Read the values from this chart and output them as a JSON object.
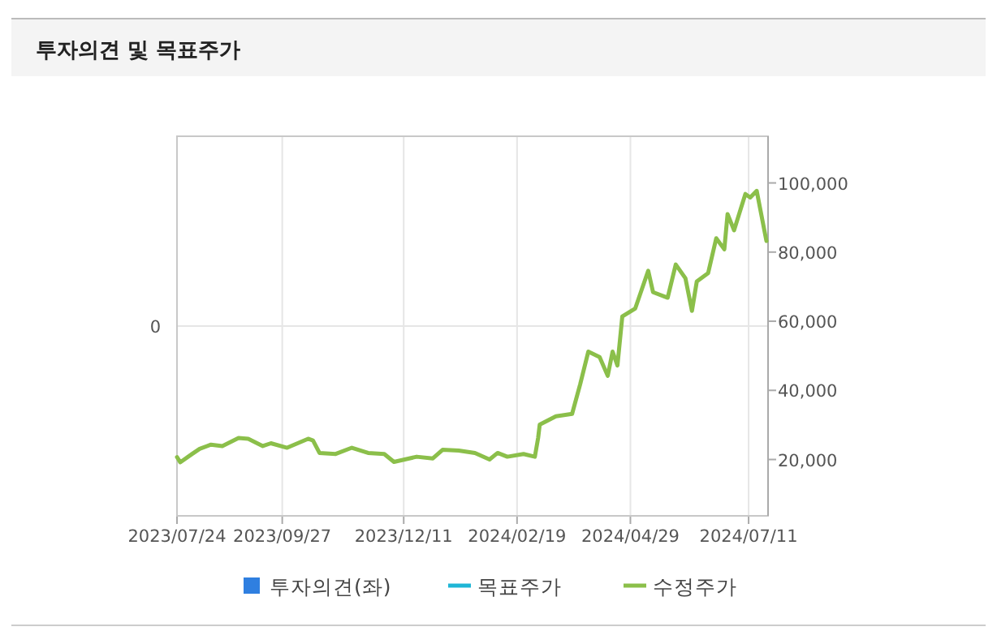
{
  "chart_data": {
    "type": "line",
    "title": "투자의견 및 목표주가",
    "xlim": [
      "2023-07-24",
      "2024-07-23"
    ],
    "xticks": [
      {
        "value": "2023-07-24",
        "label": "2023/07/24"
      },
      {
        "value": "2023-09-27",
        "label": "2023/09/27"
      },
      {
        "value": "2023-12-11",
        "label": "2023/12/11"
      },
      {
        "value": "2024-02-19",
        "label": "2024/02/19"
      },
      {
        "value": "2024-04-29",
        "label": "2024/04/29"
      },
      {
        "value": "2024-07-11",
        "label": "2024/07/11"
      }
    ],
    "annotations": [
      "0"
    ],
    "y2lim": [
      3700,
      113500
    ],
    "y2ticks": [
      {
        "value": 20000,
        "label": "20,000"
      },
      {
        "value": 40000,
        "label": "40,000"
      },
      {
        "value": 60000,
        "label": "60,000"
      },
      {
        "value": 80000,
        "label": "80,000"
      },
      {
        "value": 100000,
        "label": "100,000"
      }
    ],
    "grid": true,
    "legend": "bottom",
    "series": [
      {
        "name": "투자의견(좌)",
        "type": "bar",
        "axis": "y",
        "color": "#2f7fe0"
      },
      {
        "name": "목표주가",
        "type": "line",
        "axis": "y2",
        "color": "#1fb6d6"
      },
      {
        "name": "수정주가",
        "axis": "y2",
        "color": "#8bbf4a",
        "x": [
          "2023-07-24",
          "2023-07-26",
          "2023-08-02",
          "2023-08-07",
          "2023-08-14",
          "2023-08-21",
          "2023-08-31",
          "2023-09-06",
          "2023-09-15",
          "2023-09-20",
          "2023-09-30",
          "2023-10-13",
          "2023-10-16",
          "2023-10-20",
          "2023-10-30",
          "2023-11-09",
          "2023-11-19",
          "2023-11-29",
          "2023-12-05",
          "2023-12-19",
          "2023-12-29",
          "2024-01-04",
          "2024-01-14",
          "2024-01-24",
          "2024-02-02",
          "2024-02-07",
          "2024-02-13",
          "2024-02-23",
          "2024-03-01",
          "2024-03-03",
          "2024-03-04",
          "2024-03-14",
          "2024-03-24",
          "2024-03-29",
          "2024-04-03",
          "2024-04-10",
          "2024-04-15",
          "2024-04-18",
          "2024-04-21",
          "2024-04-24",
          "2024-05-02",
          "2024-05-10",
          "2024-05-13",
          "2024-05-22",
          "2024-05-27",
          "2024-06-02",
          "2024-06-06",
          "2024-06-09",
          "2024-06-16",
          "2024-06-21",
          "2024-06-26",
          "2024-06-28",
          "2024-07-02",
          "2024-07-09",
          "2024-07-12",
          "2024-07-16",
          "2024-07-22"
        ],
        "values": [
          20700,
          19200,
          21500,
          23100,
          24300,
          23900,
          26200,
          26000,
          23900,
          24700,
          23400,
          26000,
          25500,
          21900,
          21600,
          23400,
          21900,
          21600,
          19300,
          20800,
          20300,
          22800,
          22600,
          21900,
          20000,
          21900,
          20800,
          21600,
          20800,
          26200,
          30100,
          32500,
          33200,
          41800,
          51200,
          49600,
          44200,
          51200,
          47200,
          61400,
          63700,
          74600,
          68400,
          66800,
          76400,
          72400,
          63000,
          71500,
          73900,
          84000,
          80800,
          91000,
          86300,
          96800,
          95800,
          97700,
          83200
        ]
      }
    ]
  }
}
